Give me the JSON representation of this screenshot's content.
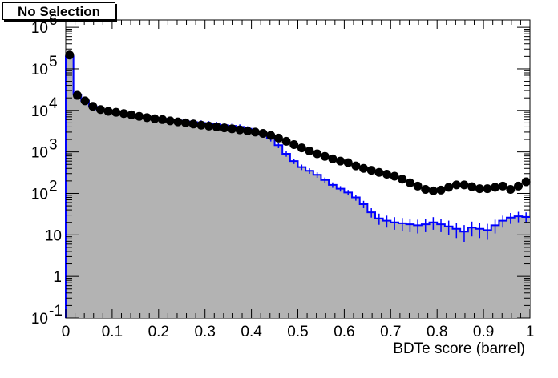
{
  "label_box": "No Selection",
  "chart_data": {
    "type": "histogram",
    "xlabel": "BDTe score (barrel)",
    "ylabel": "",
    "xlim": [
      0,
      1
    ],
    "ylim": [
      0.1,
      1500000
    ],
    "y_scale": "log",
    "grid": false,
    "bin_width": 0.0167,
    "x_ticks": [
      "0",
      "0.1",
      "0.2",
      "0.3",
      "0.4",
      "0.5",
      "0.6",
      "0.7",
      "0.8",
      "0.9",
      "1"
    ],
    "y_ticks": [
      {
        "base": "10",
        "exp": "-1",
        "value": 0.1
      },
      {
        "base": "1",
        "exp": "",
        "value": 1
      },
      {
        "base": "10",
        "exp": "",
        "value": 10
      },
      {
        "base": "10",
        "exp": "2",
        "value": 100
      },
      {
        "base": "10",
        "exp": "3",
        "value": 1000
      },
      {
        "base": "10",
        "exp": "4",
        "value": 10000
      },
      {
        "base": "10",
        "exp": "5",
        "value": 100000
      },
      {
        "base": "10",
        "exp": "6",
        "value": 1000000
      }
    ],
    "series": [
      {
        "role": "simulation histogram (grey fill, blue outline)",
        "fill_color": "#b3b3b3",
        "line_color": "#0000ff",
        "values": [
          200000,
          24000,
          17000,
          12500,
          10500,
          9500,
          9000,
          8400,
          7900,
          7400,
          7000,
          6600,
          6300,
          6000,
          5700,
          5400,
          5200,
          5000,
          4800,
          4600,
          4400,
          4250,
          4000,
          3600,
          3100,
          2600,
          2100,
          1450,
          900,
          600,
          430,
          350,
          280,
          210,
          160,
          130,
          105,
          80,
          55,
          35,
          25,
          22,
          20,
          19,
          18,
          17,
          18,
          20,
          18,
          16,
          14,
          12,
          15,
          14,
          13,
          17,
          22,
          26,
          28,
          27
        ]
      },
      {
        "role": "data points (black markers with error bars)",
        "marker_color": "#000000",
        "values": [
          215000,
          23000,
          17000,
          12500,
          10500,
          9500,
          9000,
          8400,
          7800,
          7200,
          6700,
          6300,
          6000,
          5600,
          5300,
          5000,
          4700,
          4400,
          4200,
          4000,
          3800,
          3600,
          3400,
          3200,
          3000,
          2800,
          2500,
          2150,
          1800,
          1500,
          1250,
          1050,
          900,
          780,
          680,
          600,
          550,
          460,
          400,
          360,
          320,
          290,
          260,
          220,
          180,
          150,
          125,
          115,
          120,
          140,
          160,
          160,
          145,
          130,
          130,
          140,
          150,
          125,
          150,
          190
        ]
      }
    ]
  }
}
